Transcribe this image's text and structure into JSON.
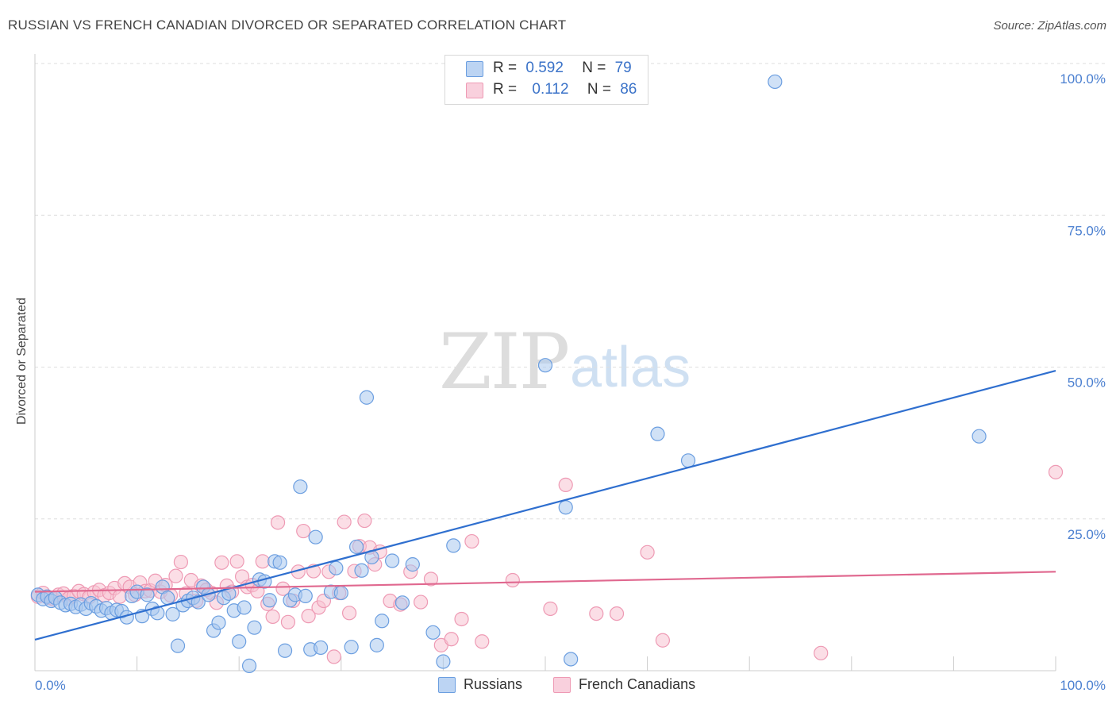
{
  "title": "RUSSIAN VS FRENCH CANADIAN DIVORCED OR SEPARATED CORRELATION CHART",
  "source": "Source: ZipAtlas.com",
  "watermark": {
    "zip": "ZIP",
    "atlas": "atlas"
  },
  "legend": {
    "russians": {
      "r_label": "R =",
      "r_value": "0.592",
      "n_label": "N =",
      "n_value": "79"
    },
    "french": {
      "r_label": "R =",
      "r_value": "0.112",
      "n_label": "N =",
      "n_value": "86"
    }
  },
  "bottom_legend": {
    "russians": "Russians",
    "french": "French Canadians"
  },
  "colors": {
    "russians_fill": "#aac8ef",
    "russians_stroke": "#6b9ee0",
    "russians_line": "#2f6fcf",
    "french_fill": "#f7c2d2",
    "french_stroke": "#ee9ab4",
    "french_line": "#e0688f",
    "tick": "#4a7fd0",
    "grid": "#dedede"
  },
  "chart_data": {
    "type": "scatter",
    "title": "RUSSIAN VS FRENCH CANADIAN DIVORCED OR SEPARATED CORRELATION CHART",
    "xlabel": "",
    "ylabel": "Divorced or Separated",
    "xlim": [
      0,
      100
    ],
    "ylim": [
      0,
      100
    ],
    "x_ticks": [
      {
        "value": 0,
        "label": "0.0%"
      },
      {
        "value": 100,
        "label": "100.0%"
      }
    ],
    "y_ticks": [
      {
        "value": 25,
        "label": "25.0%"
      },
      {
        "value": 50,
        "label": "50.0%"
      },
      {
        "value": 75,
        "label": "75.0%"
      },
      {
        "value": 100,
        "label": "100.0%"
      }
    ],
    "grid": true,
    "legend_position": "top-center",
    "series": [
      {
        "name": "Russians",
        "r": 0.592,
        "n": 79,
        "trend": {
          "x": [
            0,
            100
          ],
          "y": [
            5.1,
            49.4
          ]
        },
        "points": [
          [
            0.3,
            12.5
          ],
          [
            0.8,
            11.8
          ],
          [
            1.2,
            12.2
          ],
          [
            1.6,
            11.5
          ],
          [
            2.0,
            12.0
          ],
          [
            2.5,
            11.2
          ],
          [
            3.0,
            10.8
          ],
          [
            3.5,
            11.0
          ],
          [
            4.0,
            10.5
          ],
          [
            4.5,
            10.9
          ],
          [
            5.0,
            10.2
          ],
          [
            5.5,
            11.1
          ],
          [
            6.0,
            10.6
          ],
          [
            6.5,
            9.9
          ],
          [
            7.0,
            10.3
          ],
          [
            7.5,
            9.5
          ],
          [
            8.0,
            10.0
          ],
          [
            8.5,
            9.8
          ],
          [
            9.0,
            8.8
          ],
          [
            9.5,
            12.3
          ],
          [
            10.0,
            13.0
          ],
          [
            10.5,
            9.0
          ],
          [
            11.0,
            12.5
          ],
          [
            11.5,
            10.2
          ],
          [
            12.0,
            9.5
          ],
          [
            12.5,
            13.8
          ],
          [
            13.0,
            12.0
          ],
          [
            13.5,
            9.3
          ],
          [
            14.0,
            4.1
          ],
          [
            14.5,
            10.8
          ],
          [
            15.0,
            11.5
          ],
          [
            15.5,
            12.0
          ],
          [
            16.0,
            11.3
          ],
          [
            16.5,
            13.8
          ],
          [
            17.0,
            12.5
          ],
          [
            17.5,
            6.6
          ],
          [
            18.0,
            7.9
          ],
          [
            18.5,
            12.0
          ],
          [
            19.0,
            12.7
          ],
          [
            19.5,
            9.9
          ],
          [
            20.0,
            4.8
          ],
          [
            20.5,
            10.4
          ],
          [
            21.0,
            0.8
          ],
          [
            21.5,
            7.1
          ],
          [
            22.0,
            15.0
          ],
          [
            22.5,
            14.7
          ],
          [
            23.0,
            11.6
          ],
          [
            23.5,
            18.0
          ],
          [
            24.0,
            17.8
          ],
          [
            24.5,
            3.3
          ],
          [
            25.0,
            11.6
          ],
          [
            25.5,
            12.5
          ],
          [
            26.0,
            30.3
          ],
          [
            26.5,
            12.3
          ],
          [
            27.0,
            3.5
          ],
          [
            27.5,
            22.0
          ],
          [
            28.0,
            3.8
          ],
          [
            29.0,
            13.0
          ],
          [
            29.5,
            16.9
          ],
          [
            30.0,
            12.8
          ],
          [
            31.0,
            3.9
          ],
          [
            31.5,
            20.4
          ],
          [
            32.0,
            16.5
          ],
          [
            32.5,
            45.0
          ],
          [
            33.0,
            18.7
          ],
          [
            33.5,
            4.2
          ],
          [
            34.0,
            8.2
          ],
          [
            35.0,
            18.1
          ],
          [
            36.0,
            11.2
          ],
          [
            37.0,
            17.5
          ],
          [
            39.0,
            6.3
          ],
          [
            40.0,
            1.5
          ],
          [
            41.0,
            20.6
          ],
          [
            50.0,
            50.3
          ],
          [
            52.0,
            26.9
          ],
          [
            52.5,
            1.9
          ],
          [
            61.0,
            39.0
          ],
          [
            64.0,
            34.6
          ],
          [
            72.5,
            97.0
          ],
          [
            92.5,
            38.6
          ]
        ]
      },
      {
        "name": "French Canadians",
        "r": 0.112,
        "n": 86,
        "trend": {
          "x": [
            0,
            100
          ],
          "y": [
            13.0,
            16.3
          ]
        },
        "points": [
          [
            0.3,
            12.2
          ],
          [
            0.8,
            12.8
          ],
          [
            1.3,
            12.0
          ],
          [
            1.8,
            11.8
          ],
          [
            2.3,
            12.5
          ],
          [
            2.8,
            12.7
          ],
          [
            3.3,
            11.9
          ],
          [
            3.8,
            12.3
          ],
          [
            4.3,
            13.1
          ],
          [
            4.8,
            12.6
          ],
          [
            5.3,
            12.1
          ],
          [
            5.8,
            12.9
          ],
          [
            6.3,
            13.3
          ],
          [
            6.8,
            12.4
          ],
          [
            7.3,
            12.8
          ],
          [
            7.8,
            13.6
          ],
          [
            8.3,
            12.2
          ],
          [
            8.8,
            14.4
          ],
          [
            9.3,
            13.8
          ],
          [
            9.8,
            12.5
          ],
          [
            10.3,
            14.5
          ],
          [
            10.8,
            13.1
          ],
          [
            11.3,
            13.2
          ],
          [
            11.8,
            14.8
          ],
          [
            12.3,
            13.0
          ],
          [
            12.8,
            14.1
          ],
          [
            13.3,
            12.4
          ],
          [
            13.8,
            15.6
          ],
          [
            14.3,
            17.9
          ],
          [
            14.8,
            12.7
          ],
          [
            15.3,
            14.9
          ],
          [
            15.8,
            11.5
          ],
          [
            16.3,
            14.0
          ],
          [
            16.8,
            13.3
          ],
          [
            17.3,
            12.8
          ],
          [
            17.8,
            11.2
          ],
          [
            18.3,
            17.8
          ],
          [
            18.8,
            14.0
          ],
          [
            19.3,
            13.0
          ],
          [
            19.8,
            18.0
          ],
          [
            20.3,
            15.5
          ],
          [
            20.8,
            13.8
          ],
          [
            21.3,
            14.1
          ],
          [
            21.8,
            13.1
          ],
          [
            22.3,
            18.0
          ],
          [
            22.8,
            11.0
          ],
          [
            23.3,
            8.9
          ],
          [
            23.8,
            24.4
          ],
          [
            24.3,
            13.5
          ],
          [
            24.8,
            8.0
          ],
          [
            25.3,
            11.5
          ],
          [
            25.8,
            16.3
          ],
          [
            26.3,
            23.0
          ],
          [
            26.8,
            9.0
          ],
          [
            27.3,
            16.4
          ],
          [
            27.8,
            10.4
          ],
          [
            28.3,
            11.5
          ],
          [
            28.8,
            16.3
          ],
          [
            29.3,
            2.3
          ],
          [
            29.8,
            12.8
          ],
          [
            30.3,
            24.5
          ],
          [
            30.8,
            9.5
          ],
          [
            31.3,
            16.4
          ],
          [
            31.8,
            20.5
          ],
          [
            32.3,
            24.7
          ],
          [
            32.8,
            20.3
          ],
          [
            33.3,
            17.5
          ],
          [
            33.8,
            19.6
          ],
          [
            34.8,
            11.5
          ],
          [
            35.8,
            10.9
          ],
          [
            36.8,
            16.3
          ],
          [
            37.8,
            11.3
          ],
          [
            38.8,
            15.1
          ],
          [
            39.8,
            4.2
          ],
          [
            40.8,
            5.2
          ],
          [
            41.8,
            8.5
          ],
          [
            42.8,
            21.3
          ],
          [
            43.8,
            4.8
          ],
          [
            46.8,
            14.9
          ],
          [
            50.5,
            10.2
          ],
          [
            52.0,
            30.6
          ],
          [
            55.0,
            9.4
          ],
          [
            57.0,
            9.4
          ],
          [
            60.0,
            19.5
          ],
          [
            61.5,
            5.0
          ],
          [
            77.0,
            2.9
          ],
          [
            100.0,
            32.7
          ]
        ]
      }
    ]
  }
}
